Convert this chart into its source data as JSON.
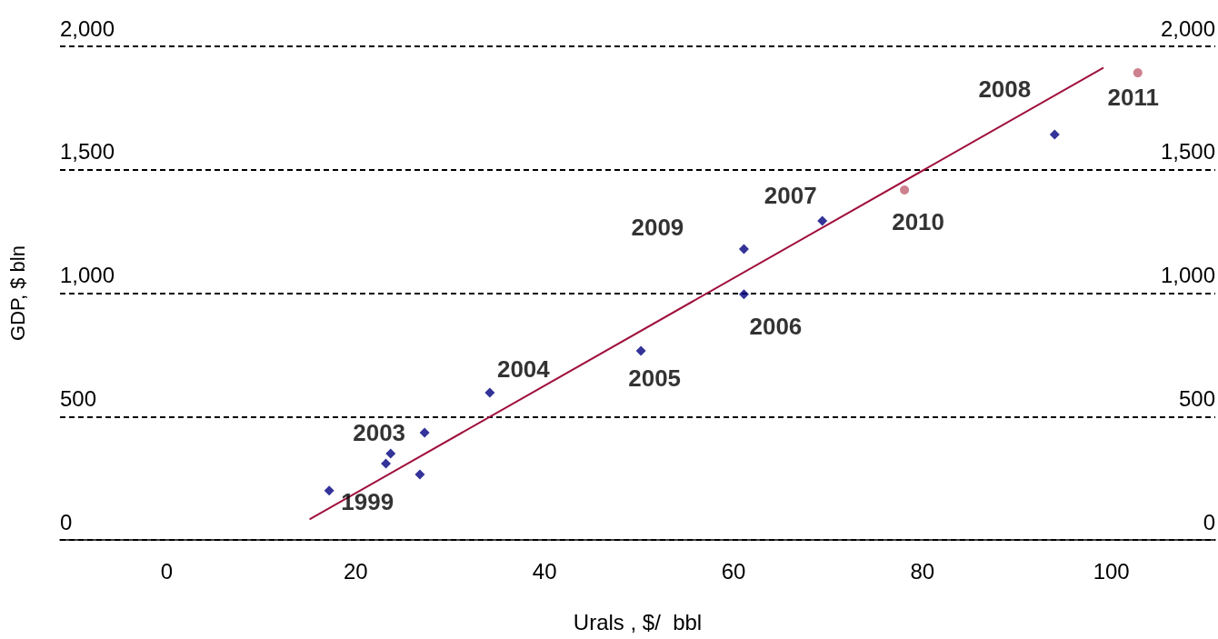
{
  "chart_data": {
    "type": "scatter",
    "xlabel": "Urals , $/  bbl",
    "ylabel": "GDP, $ bln",
    "xlim": [
      -11.3,
      111
    ],
    "xticks": [
      0,
      20,
      40,
      60,
      80,
      100
    ],
    "ylim": [
      0,
      2000
    ],
    "yticks": [
      0,
      500,
      {
        "value": 1000,
        "label": "1,000"
      },
      {
        "value": 1500,
        "label": "1,500"
      },
      {
        "value": 2000,
        "label": "2,000"
      }
    ],
    "y2lim": [
      0,
      2000
    ],
    "y2ticks": [
      0,
      500,
      {
        "value": 1000,
        "label": "1,000"
      },
      {
        "value": 1500,
        "label": "1,500"
      },
      {
        "value": 2000,
        "label": "2,000"
      }
    ],
    "grid": "y",
    "series": [
      {
        "color": "#000080",
        "marker": "diamond",
        "x": [
          17.2,
          26.8,
          23.2,
          23.7,
          27.3,
          34.2,
          50.2,
          61.1,
          69.4,
          94.0,
          61.1
        ],
        "values": [
          200,
          265,
          309,
          350,
          435,
          597,
          766,
          995,
          1293,
          1643,
          1179
        ]
      },
      {
        "color": "#c06070",
        "marker": "circle",
        "x": [
          78.1,
          102.8
        ],
        "values": [
          1418,
          1893
        ]
      },
      {
        "type": "line",
        "color": "#a0103c",
        "marker": "none",
        "x": [
          15.2,
          99.1
        ],
        "values": [
          85,
          1912
        ]
      }
    ],
    "annotations": [
      {
        "text": "1999",
        "x": 17.2,
        "y": 200
      },
      {
        "text": "2003",
        "x": 27.3,
        "y": 435
      },
      {
        "text": "2004",
        "x": 34.2,
        "y": 597
      },
      {
        "text": "2005",
        "x": 50.2,
        "y": 766
      },
      {
        "text": "2006",
        "x": 61.1,
        "y": 995
      },
      {
        "text": "2009",
        "x": 61.1,
        "y": 1179
      },
      {
        "text": "2007",
        "x": 69.4,
        "y": 1293
      },
      {
        "text": "2008",
        "x": 94.0,
        "y": 1643
      },
      {
        "text": "2010",
        "x": 78.1,
        "y": 1418
      },
      {
        "text": "2011",
        "x": 102.8,
        "y": 1893
      }
    ]
  }
}
